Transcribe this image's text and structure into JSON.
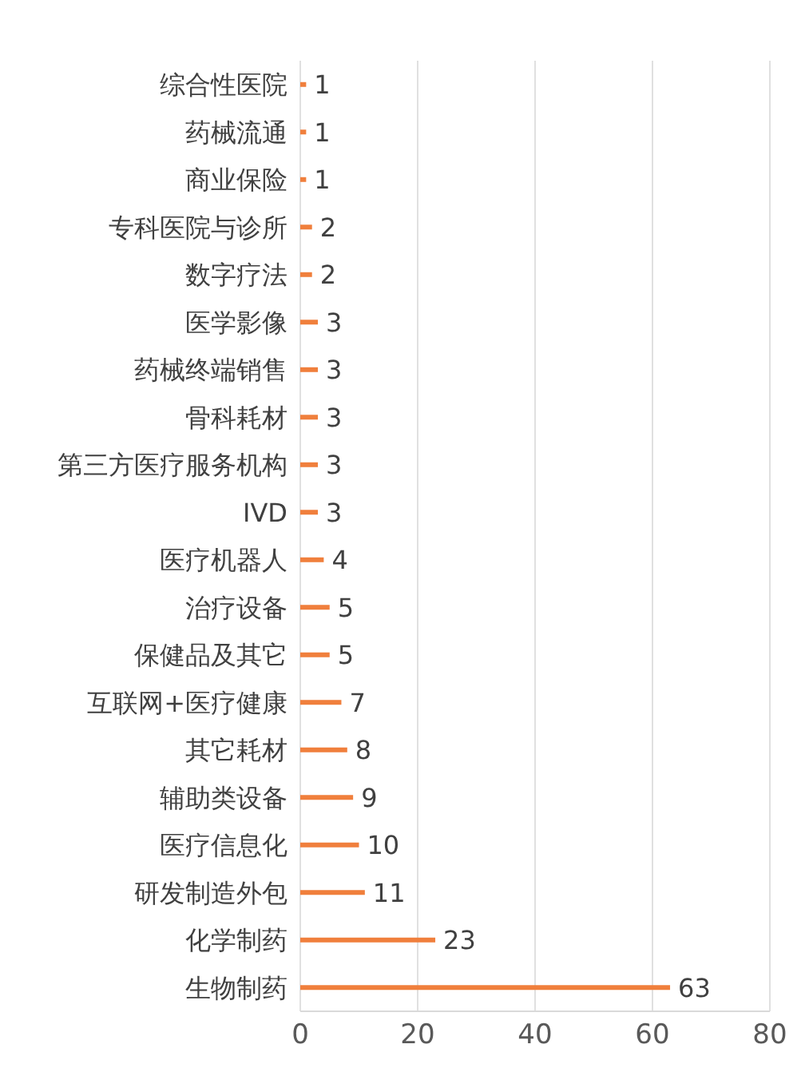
{
  "chart_data": {
    "type": "bar",
    "orientation": "horizontal",
    "categories": [
      "综合性医院",
      "药械流通",
      "商业保险",
      "专科医院与诊所",
      "数字疗法",
      "医学影像",
      "药械终端销售",
      "骨科耗材",
      "第三方医疗服务机构",
      "IVD",
      "医疗机器人",
      "治疗设备",
      "保健品及其它",
      "互联网+医疗健康",
      "其它耗材",
      "辅助类设备",
      "医疗信息化",
      "研发制造外包",
      "化学制药",
      "生物制药"
    ],
    "values": [
      1,
      1,
      1,
      2,
      2,
      3,
      3,
      3,
      3,
      3,
      4,
      5,
      5,
      7,
      8,
      9,
      10,
      11,
      23,
      63
    ],
    "color": "#f07f3c",
    "xlim": [
      0,
      80
    ],
    "xticks": [
      0,
      20,
      40,
      60,
      80
    ],
    "grid": "x",
    "data_labels": true
  }
}
